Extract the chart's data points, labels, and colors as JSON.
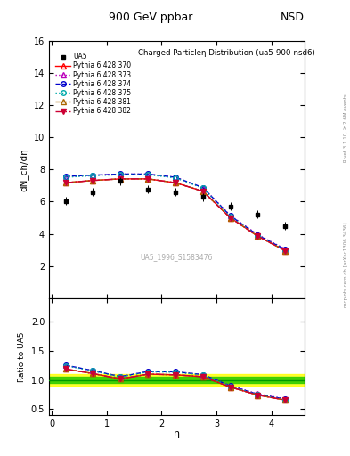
{
  "title_top": "900 GeV ppbar",
  "title_top_right": "NSD",
  "main_title": "Charged Particleη Distribution (ua5-900-nsd6)",
  "watermark": "UA5_1996_S1583476",
  "right_label": "Rivet 3.1.10, ≥ 2.6M events",
  "right_label2": "mcplots.cern.ch [arXiv:1306.3436]",
  "ylabel_main": "dN_ch/dη",
  "ylabel_ratio": "Ratio to UA5",
  "xlabel": "η",
  "main_ylim": [
    0,
    16
  ],
  "main_yticks": [
    2,
    4,
    6,
    8,
    10,
    12,
    14,
    16
  ],
  "ratio_ylim": [
    0.4,
    2.4
  ],
  "ratio_yticks": [
    0.5,
    1.0,
    1.5,
    2.0
  ],
  "xlim": [
    -0.05,
    4.6
  ],
  "xticks": [
    0,
    1,
    2,
    3,
    4
  ],
  "ua5_x": [
    0.25,
    0.75,
    1.25,
    1.75,
    2.25,
    2.75,
    3.25,
    3.75,
    4.25
  ],
  "ua5_y": [
    6.05,
    6.6,
    7.3,
    6.75,
    6.6,
    6.3,
    5.7,
    5.2,
    4.5
  ],
  "ua5_yerr": [
    0.25,
    0.25,
    0.25,
    0.25,
    0.25,
    0.25,
    0.25,
    0.25,
    0.25
  ],
  "pythia_x": [
    0.25,
    0.75,
    1.25,
    1.75,
    2.25,
    2.75,
    3.25,
    3.75,
    4.25
  ],
  "series": [
    {
      "label": "Pythia 6.428 370",
      "color": "#ff0000",
      "linestyle": "-",
      "marker": "^",
      "markerfacecolor": "none",
      "y": [
        7.18,
        7.32,
        7.42,
        7.42,
        7.18,
        6.65,
        5.0,
        3.85,
        2.95
      ]
    },
    {
      "label": "Pythia 6.428 373",
      "color": "#bb00bb",
      "linestyle": ":",
      "marker": "^",
      "markerfacecolor": "none",
      "y": [
        7.55,
        7.65,
        7.72,
        7.72,
        7.52,
        6.88,
        5.15,
        3.95,
        3.05
      ]
    },
    {
      "label": "Pythia 6.428 374",
      "color": "#0000cc",
      "linestyle": "--",
      "marker": "o",
      "markerfacecolor": "none",
      "y": [
        7.58,
        7.65,
        7.72,
        7.72,
        7.52,
        6.88,
        5.12,
        3.92,
        3.02
      ]
    },
    {
      "label": "Pythia 6.428 375",
      "color": "#00aaaa",
      "linestyle": ":",
      "marker": "o",
      "markerfacecolor": "none",
      "y": [
        7.52,
        7.62,
        7.68,
        7.68,
        7.48,
        6.84,
        5.08,
        3.88,
        2.98
      ]
    },
    {
      "label": "Pythia 6.428 381",
      "color": "#aa6600",
      "linestyle": "--",
      "marker": "^",
      "markerfacecolor": "none",
      "y": [
        7.18,
        7.32,
        7.42,
        7.42,
        7.18,
        6.65,
        5.0,
        3.85,
        2.95
      ]
    },
    {
      "label": "Pythia 6.428 382",
      "color": "#cc0033",
      "linestyle": "-.",
      "marker": "v",
      "markerfacecolor": "#cc0033",
      "y": [
        7.18,
        7.32,
        7.42,
        7.42,
        7.18,
        6.65,
        5.0,
        3.85,
        2.95
      ]
    }
  ],
  "ref_band_green_half": 0.05,
  "ref_band_yellow_half": 0.1,
  "background_color": "#ffffff"
}
